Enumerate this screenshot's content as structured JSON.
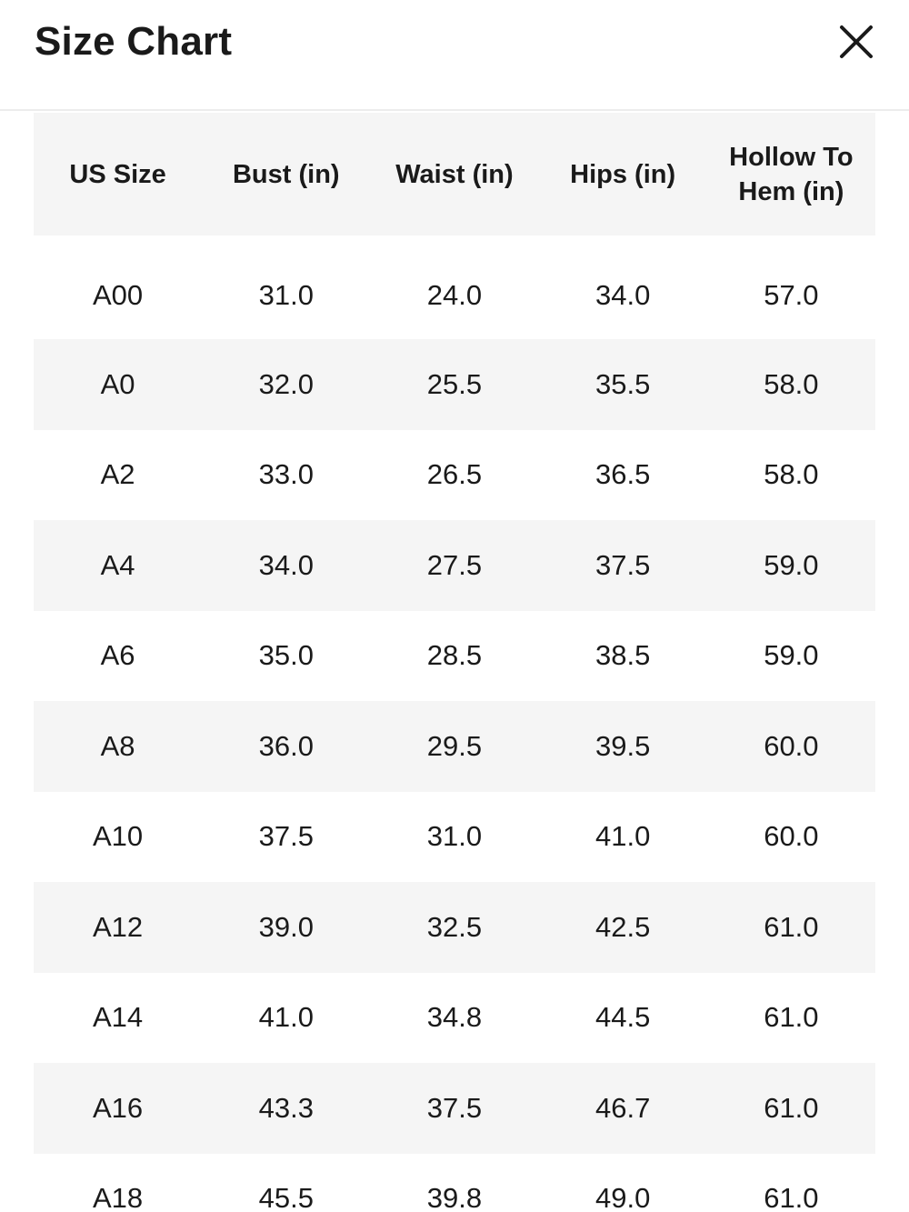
{
  "header": {
    "title": "Size Chart"
  },
  "table": {
    "headers": [
      "US Size",
      "Bust (in)",
      "Waist (in)",
      "Hips (in)",
      "Hollow To Hem (in)"
    ],
    "header_last_lines": [
      "Hollow To",
      "Hem (in)"
    ],
    "rows": [
      [
        "A00",
        "31.0",
        "24.0",
        "34.0",
        "57.0"
      ],
      [
        "A0",
        "32.0",
        "25.5",
        "35.5",
        "58.0"
      ],
      [
        "A2",
        "33.0",
        "26.5",
        "36.5",
        "58.0"
      ],
      [
        "A4",
        "34.0",
        "27.5",
        "37.5",
        "59.0"
      ],
      [
        "A6",
        "35.0",
        "28.5",
        "38.5",
        "59.0"
      ],
      [
        "A8",
        "36.0",
        "29.5",
        "39.5",
        "60.0"
      ],
      [
        "A10",
        "37.5",
        "31.0",
        "41.0",
        "60.0"
      ],
      [
        "A12",
        "39.0",
        "32.5",
        "42.5",
        "61.0"
      ],
      [
        "A14",
        "41.0",
        "34.8",
        "44.5",
        "61.0"
      ],
      [
        "A16",
        "43.3",
        "37.5",
        "46.7",
        "61.0"
      ],
      [
        "A18",
        "45.5",
        "39.8",
        "49.0",
        "61.0"
      ]
    ]
  },
  "colors": {
    "row_shade": "#f5f5f5",
    "text": "#1a1a1a",
    "divider": "#ececec"
  },
  "icons": {
    "close": "close-icon"
  }
}
